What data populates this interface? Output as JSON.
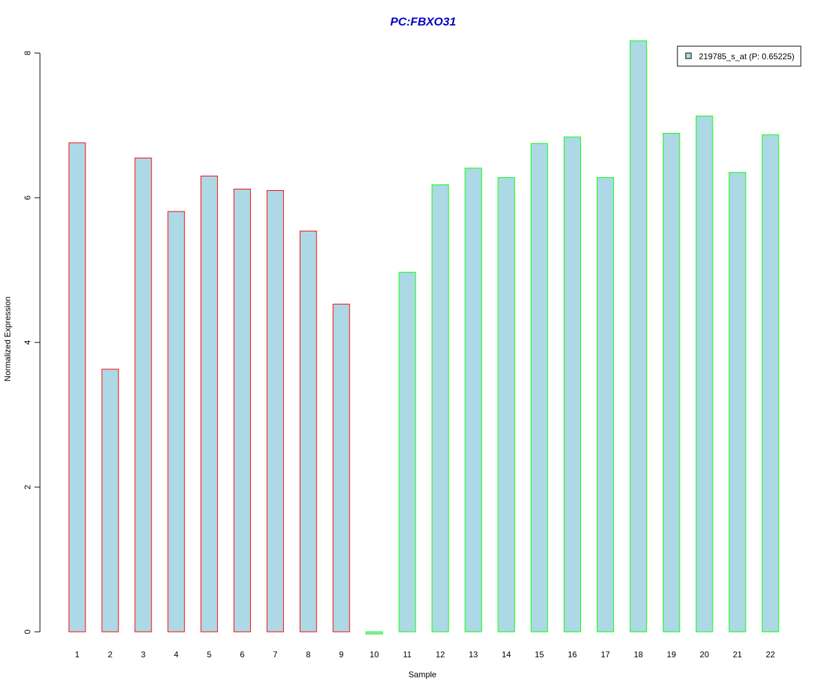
{
  "chart_data": {
    "type": "bar",
    "title": "PC:FBXO31",
    "xlabel": "Sample",
    "ylabel": "Normalized Expression",
    "ylim": [
      0,
      8
    ],
    "y_ticks": [
      "0",
      "2",
      "4",
      "6",
      "8"
    ],
    "categories": [
      "1",
      "2",
      "3",
      "4",
      "5",
      "6",
      "7",
      "8",
      "9",
      "10",
      "11",
      "12",
      "13",
      "14",
      "15",
      "16",
      "17",
      "18",
      "19",
      "20",
      "21",
      "22"
    ],
    "values": [
      6.76,
      3.63,
      6.55,
      5.81,
      6.3,
      6.12,
      6.1,
      5.54,
      4.53,
      -0.03,
      4.97,
      6.18,
      6.41,
      6.28,
      6.75,
      6.84,
      6.28,
      8.17,
      6.89,
      7.13,
      6.35,
      6.87
    ],
    "group_of_bar": [
      "red",
      "red",
      "red",
      "red",
      "red",
      "red",
      "red",
      "red",
      "red",
      "green",
      "green",
      "green",
      "green",
      "green",
      "green",
      "green",
      "green",
      "green",
      "green",
      "green",
      "green",
      "green"
    ],
    "series": [
      {
        "name": "219785_s_at (P: 0.65225)"
      }
    ],
    "legend_position": "top-right",
    "grid": false
  },
  "colors": {
    "bar_fill": "#add8e6",
    "red_border": "#ff0000",
    "green_border": "#00ff00",
    "title": "#0000cc",
    "axis": "#000000"
  }
}
